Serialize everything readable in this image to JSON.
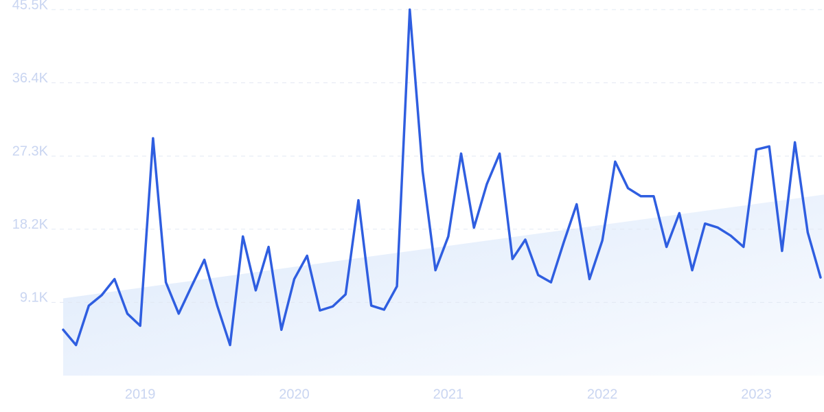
{
  "chart_data": {
    "type": "line",
    "categories": [
      null,
      null,
      null,
      null,
      null,
      null,
      "2019",
      null,
      null,
      null,
      null,
      null,
      null,
      null,
      null,
      null,
      null,
      null,
      "2020",
      null,
      null,
      null,
      null,
      null,
      null,
      null,
      null,
      null,
      null,
      null,
      "2021",
      null,
      null,
      null,
      null,
      null,
      null,
      null,
      null,
      null,
      null,
      null,
      "2022",
      null,
      null,
      null,
      null,
      null,
      null,
      null,
      null,
      null,
      null,
      null,
      "2023",
      null,
      null,
      null,
      null,
      null
    ],
    "values": [
      5700,
      3800,
      8700,
      10000,
      12000,
      7700,
      6200,
      29500,
      11600,
      7700,
      11100,
      14400,
      8700,
      3800,
      17300,
      10600,
      16000,
      5700,
      12000,
      14900,
      8100,
      8600,
      10100,
      21800,
      8700,
      8200,
      11100,
      45500,
      25400,
      13100,
      17300,
      27600,
      18400,
      23800,
      27600,
      14500,
      16900,
      12500,
      11600,
      16600,
      21300,
      12000,
      16800,
      26600,
      23300,
      22300,
      22300,
      16000,
      20200,
      13100,
      18900,
      18400,
      17400,
      16000,
      28100,
      28500,
      15500,
      29000,
      17800,
      12200
    ],
    "color": "#2f5ee0",
    "trend": [
      9600,
      22500
    ],
    "trend_color": "#dce9fb",
    "ylim": [
      0,
      45500
    ],
    "yticks": [
      {
        "value": 9100,
        "label": "9.1K"
      },
      {
        "value": 18200,
        "label": "18.2K"
      },
      {
        "value": 27300,
        "label": "27.3K"
      },
      {
        "value": 36400,
        "label": "36.4K"
      },
      {
        "value": 45500,
        "label": "45.5K"
      }
    ],
    "grid": true
  }
}
